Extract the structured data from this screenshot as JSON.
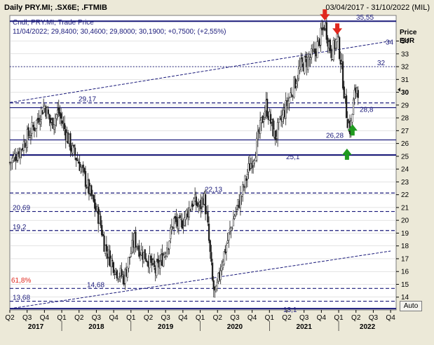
{
  "header": {
    "title": "Daily PRY.MI; .SX6E; .FTMIB",
    "date_range": "03/04/2017 - 31/10/2022 (MIL)"
  },
  "legend": {
    "line1": "Cndl; PRY.MI; Trade Price",
    "line2": "11/04/2022; 29,8400; 30,4600; 29,8000; 30,1900; +0,7500; (+2,55%)"
  },
  "auto_button": "Auto",
  "colors": {
    "background": "#ece9d8",
    "plot_bg": "#ffffff",
    "candles": "#1e1e1e",
    "level_lines": "#1a1a7a",
    "grid": "#c9c9c9",
    "down_arrow": "#e0281e",
    "up_arrow": "#1f9a1f"
  },
  "chart_data": {
    "type": "candlestick",
    "symbol": "PRY.MI",
    "ylabel": "Price EUR",
    "ylim": [
      13,
      36
    ],
    "y_ticks": [
      14,
      15,
      16,
      17,
      18,
      19,
      20,
      21,
      22,
      23,
      24,
      25,
      26,
      27,
      28,
      29,
      30,
      31,
      32,
      33,
      34
    ],
    "current_price_tick": "30",
    "x_range": [
      "03/04/2017",
      "31/10/2022"
    ],
    "quarter_ticks": [
      "Q2",
      "Q3",
      "Q4",
      "Q1",
      "Q2",
      "Q3",
      "Q4",
      "Q1",
      "Q2",
      "Q3",
      "Q4",
      "Q1",
      "Q2",
      "Q3",
      "Q4",
      "Q1",
      "Q2",
      "Q3",
      "Q4",
      "Q1",
      "Q2",
      "Q3",
      "Q4"
    ],
    "years": [
      "2017",
      "2018",
      "2019",
      "2020",
      "2021",
      "2022"
    ],
    "approx_price_path": [
      [
        2017.25,
        24.5
      ],
      [
        2017.4,
        25.5
      ],
      [
        2017.5,
        26.5
      ],
      [
        2017.62,
        27.5
      ],
      [
        2017.7,
        28.5
      ],
      [
        2017.75,
        29.0
      ],
      [
        2017.85,
        27.5
      ],
      [
        2017.95,
        28.5
      ],
      [
        2018.05,
        27.0
      ],
      [
        2018.15,
        25.5
      ],
      [
        2018.25,
        24.5
      ],
      [
        2018.35,
        23.0
      ],
      [
        2018.45,
        21.5
      ],
      [
        2018.55,
        20.0
      ],
      [
        2018.62,
        18.0
      ],
      [
        2018.7,
        17.0
      ],
      [
        2018.8,
        16.0
      ],
      [
        2018.9,
        15.5
      ],
      [
        2019.0,
        17.5
      ],
      [
        2019.05,
        18.5
      ],
      [
        2019.15,
        17.5
      ],
      [
        2019.25,
        17.0
      ],
      [
        2019.35,
        16.0
      ],
      [
        2019.45,
        17.0
      ],
      [
        2019.55,
        18.5
      ],
      [
        2019.62,
        20.0
      ],
      [
        2019.7,
        19.5
      ],
      [
        2019.8,
        20.5
      ],
      [
        2019.9,
        21.5
      ],
      [
        2020.0,
        21.0
      ],
      [
        2020.05,
        22.0
      ],
      [
        2020.1,
        20.0
      ],
      [
        2020.18,
        15.0
      ],
      [
        2020.22,
        14.0
      ],
      [
        2020.3,
        16.5
      ],
      [
        2020.4,
        18.5
      ],
      [
        2020.5,
        20.5
      ],
      [
        2020.6,
        22.0
      ],
      [
        2020.7,
        24.0
      ],
      [
        2020.8,
        25.5
      ],
      [
        2020.88,
        27.5
      ],
      [
        2020.95,
        29.0
      ],
      [
        2021.0,
        28.0
      ],
      [
        2021.08,
        26.5
      ],
      [
        2021.15,
        27.5
      ],
      [
        2021.25,
        29.0
      ],
      [
        2021.35,
        30.5
      ],
      [
        2021.45,
        32.0
      ],
      [
        2021.55,
        32.5
      ],
      [
        2021.65,
        33.0
      ],
      [
        2021.75,
        34.5
      ],
      [
        2021.8,
        35.4
      ],
      [
        2021.85,
        34.0
      ],
      [
        2021.9,
        33.0
      ],
      [
        2021.98,
        34.3
      ],
      [
        2022.03,
        32.5
      ],
      [
        2022.08,
        30.0
      ],
      [
        2022.12,
        28.0
      ],
      [
        2022.17,
        27.0
      ],
      [
        2022.22,
        29.5
      ],
      [
        2022.26,
        30.5
      ],
      [
        2022.28,
        30.2
      ]
    ],
    "levels": [
      {
        "label": "35,55",
        "value": 35.55,
        "style": "solid"
      },
      {
        "label": "32",
        "value": 32,
        "style": "dotted"
      },
      {
        "label": "29,17",
        "value": 29.17,
        "style": "dashed"
      },
      {
        "label": "28,8",
        "value": 28.8,
        "style": "solid"
      },
      {
        "label": "26,28",
        "value": 26.28,
        "style": "solid"
      },
      {
        "label": "25,1",
        "value": 25.1,
        "style": "solid"
      },
      {
        "label": "22,13",
        "value": 22.13,
        "style": "dashed"
      },
      {
        "label": "20,69",
        "value": 20.69,
        "style": "dashed"
      },
      {
        "label": "19,2",
        "value": 19.2,
        "style": "dashed"
      },
      {
        "label": "14,68",
        "value": 14.68,
        "style": "dashed"
      },
      {
        "label": "13,68",
        "value": 13.68,
        "style": "dashed"
      },
      {
        "label": "13,1",
        "value": 13.1,
        "style": "solid"
      }
    ],
    "fib_label": "61,8%",
    "trendlines": [
      {
        "label": "34",
        "from": [
          2017.25,
          29.2
        ],
        "to": [
          2022.75,
          34.0
        ]
      },
      {
        "label": "",
        "from": [
          2017.25,
          13.1
        ],
        "to": [
          2022.75,
          17.6
        ]
      }
    ],
    "arrows": [
      {
        "direction": "down",
        "x": 2021.8,
        "y": 35.6
      },
      {
        "direction": "down",
        "x": 2021.98,
        "y": 34.5
      },
      {
        "direction": "up",
        "x": 2022.2,
        "y": 27.5
      },
      {
        "direction": "up",
        "x": 2022.12,
        "y": 25.6
      }
    ]
  }
}
